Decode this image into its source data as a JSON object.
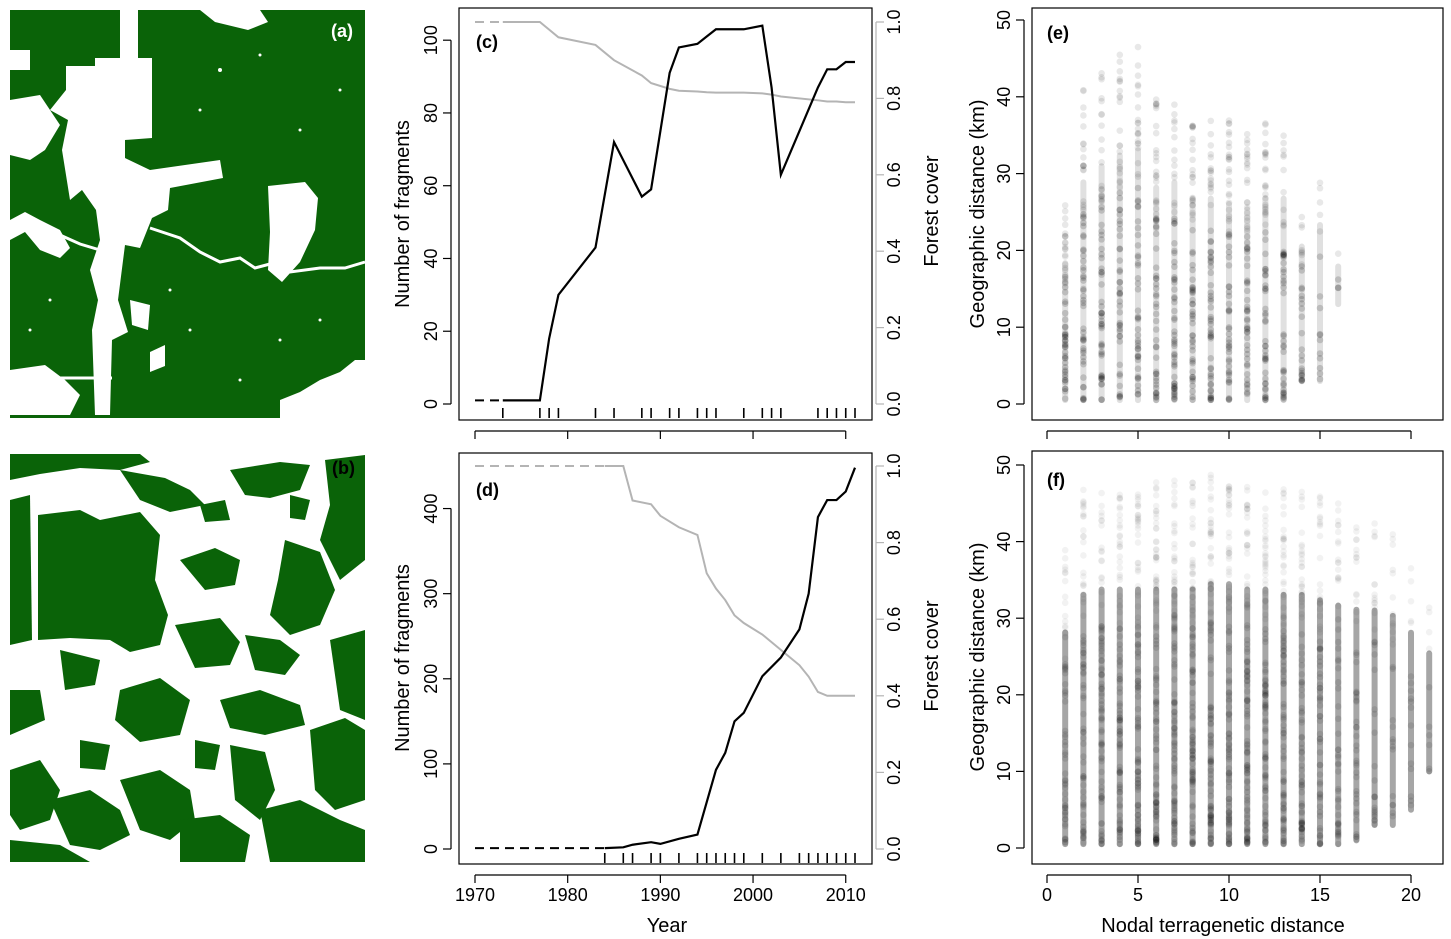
{
  "colors": {
    "forest": "#0a6308",
    "cleared": "#ffffff",
    "fragments_line": "#000000",
    "cover_line": "#b4b4b4",
    "points": "#000000"
  },
  "x_axis_label": "Year",
  "x_tick_labels": [
    "1970",
    "1980",
    "1990",
    "2000",
    "2010"
  ],
  "scatter_x_axis_label": "Nodal terragenetic distance",
  "panels": {
    "a": {
      "label": "(a)",
      "type": "map"
    },
    "b": {
      "label": "(b)",
      "type": "map"
    }
  },
  "chart_data": [
    {
      "panel_label": "(c)",
      "type": "line",
      "xlabel": "",
      "ylabel": "Number of fragments",
      "y2label": "Forest cover",
      "xlim": [
        1970,
        2011
      ],
      "ylim": [
        0,
        105
      ],
      "y2lim": [
        0,
        1
      ],
      "yticks": [
        "0",
        "20",
        "40",
        "60",
        "80",
        "100"
      ],
      "y2ticks": [
        "0.0",
        "0.2",
        "0.4",
        "0.6",
        "0.8",
        "1.0"
      ],
      "observation_years": [
        1973,
        1977,
        1978,
        1979,
        1983,
        1985,
        1988,
        1989,
        1991,
        1992,
        1994,
        1995,
        1996,
        1999,
        2001,
        2002,
        2003,
        2007,
        2008,
        2009,
        2010,
        2011
      ],
      "series": [
        {
          "axis": "left",
          "x": [
            1973,
            1977,
            1978,
            1979,
            1983,
            1985,
            1988,
            1989,
            1991,
            1992,
            1994,
            1995,
            1996,
            1999,
            2001,
            2002,
            2003,
            2007,
            2008,
            2009,
            2010,
            2011
          ],
          "values": [
            1,
            1,
            18,
            30,
            43,
            72,
            57,
            59,
            91,
            98,
            99,
            101,
            103,
            103,
            104,
            87,
            63,
            87,
            92,
            92,
            94,
            94
          ]
        },
        {
          "axis": "right",
          "x": [
            1973,
            1977,
            1978,
            1979,
            1983,
            1985,
            1988,
            1989,
            1991,
            1992,
            1994,
            1995,
            1996,
            1999,
            2001,
            2002,
            2003,
            2007,
            2008,
            2009,
            2010,
            2011
          ],
          "values": [
            1.0,
            1.0,
            0.98,
            0.96,
            0.94,
            0.9,
            0.86,
            0.84,
            0.825,
            0.82,
            0.818,
            0.816,
            0.815,
            0.815,
            0.813,
            0.81,
            0.805,
            0.795,
            0.792,
            0.792,
            0.79,
            0.79
          ]
        }
      ]
    },
    {
      "panel_label": "(d)",
      "type": "line",
      "xlabel": "Year",
      "ylabel": "Number of fragments",
      "y2label": "Forest cover",
      "xlim": [
        1970,
        2011
      ],
      "ylim": [
        0,
        450
      ],
      "y2lim": [
        0,
        1
      ],
      "yticks": [
        "0",
        "100",
        "200",
        "300",
        "400"
      ],
      "y2ticks": [
        "0.0",
        "0.2",
        "0.4",
        "0.6",
        "0.8",
        "1.0"
      ],
      "observation_years": [
        1984,
        1986,
        1987,
        1989,
        1990,
        1992,
        1994,
        1995,
        1996,
        1997,
        1998,
        1999,
        2001,
        2003,
        2005,
        2006,
        2007,
        2008,
        2009,
        2010,
        2011
      ],
      "series": [
        {
          "axis": "left",
          "x": [
            1984,
            1986,
            1987,
            1989,
            1990,
            1992,
            1994,
            1995,
            1996,
            1997,
            1998,
            1999,
            2001,
            2003,
            2005,
            2006,
            2007,
            2008,
            2009,
            2010,
            2011
          ],
          "values": [
            1,
            2,
            5,
            8,
            6,
            12,
            17,
            55,
            93,
            113,
            150,
            160,
            203,
            225,
            258,
            300,
            390,
            410,
            410,
            420,
            448
          ]
        },
        {
          "axis": "right",
          "x": [
            1984,
            1986,
            1987,
            1989,
            1990,
            1992,
            1994,
            1995,
            1996,
            1997,
            1998,
            1999,
            2001,
            2003,
            2005,
            2006,
            2007,
            2008,
            2009,
            2010,
            2011
          ],
          "values": [
            1.0,
            1.0,
            0.91,
            0.9,
            0.87,
            0.84,
            0.82,
            0.72,
            0.68,
            0.65,
            0.61,
            0.59,
            0.56,
            0.52,
            0.48,
            0.45,
            0.41,
            0.4,
            0.4,
            0.4,
            0.4
          ]
        }
      ]
    },
    {
      "panel_label": "(e)",
      "type": "scatter",
      "xlabel": "",
      "ylabel": "Geographic distance (km)",
      "xlim": [
        0,
        22
      ],
      "ylim": [
        0,
        50
      ],
      "xticks": [
        0,
        5,
        10,
        15,
        20
      ],
      "yticks": [
        "0",
        "10",
        "20",
        "30",
        "40",
        "50"
      ],
      "columns": [
        {
          "x": 1,
          "ymin": 0.5,
          "ymax": 26,
          "n": 60
        },
        {
          "x": 2,
          "ymin": 0.5,
          "ymax": 41,
          "n": 60
        },
        {
          "x": 3,
          "ymin": 0.5,
          "ymax": 44,
          "n": 60
        },
        {
          "x": 4,
          "ymin": 0.5,
          "ymax": 46,
          "n": 60
        },
        {
          "x": 5,
          "ymin": 0.5,
          "ymax": 47,
          "n": 60
        },
        {
          "x": 6,
          "ymin": 0.5,
          "ymax": 40,
          "n": 60
        },
        {
          "x": 7,
          "ymin": 0.5,
          "ymax": 41,
          "n": 60
        },
        {
          "x": 8,
          "ymin": 0.5,
          "ymax": 38,
          "n": 60
        },
        {
          "x": 9,
          "ymin": 0.5,
          "ymax": 38,
          "n": 60
        },
        {
          "x": 10,
          "ymin": 0.5,
          "ymax": 37,
          "n": 60
        },
        {
          "x": 11,
          "ymin": 0.5,
          "ymax": 36,
          "n": 60
        },
        {
          "x": 12,
          "ymin": 0.5,
          "ymax": 38,
          "n": 60
        },
        {
          "x": 13,
          "ymin": 0.5,
          "ymax": 38,
          "n": 45
        },
        {
          "x": 14,
          "ymin": 3,
          "ymax": 28,
          "n": 30
        },
        {
          "x": 15,
          "ymin": 3,
          "ymax": 32,
          "n": 16
        },
        {
          "x": 16,
          "ymin": 13,
          "ymax": 20,
          "n": 4
        }
      ]
    },
    {
      "panel_label": "(f)",
      "type": "scatter",
      "xlabel": "Nodal terragenetic distance",
      "ylabel": "Geographic distance (km)",
      "xlim": [
        0,
        22
      ],
      "ylim": [
        0,
        50
      ],
      "xticks": [
        0,
        5,
        10,
        15,
        20
      ],
      "yticks": [
        "0",
        "10",
        "20",
        "30",
        "40",
        "50"
      ],
      "columns": [
        {
          "x": 1,
          "ymin": 0.5,
          "ymax": 40,
          "n": 60
        },
        {
          "x": 2,
          "ymin": 0.5,
          "ymax": 47,
          "n": 70
        },
        {
          "x": 3,
          "ymin": 0.5,
          "ymax": 48,
          "n": 80
        },
        {
          "x": 4,
          "ymin": 0.5,
          "ymax": 48,
          "n": 90
        },
        {
          "x": 5,
          "ymin": 0.5,
          "ymax": 48,
          "n": 95
        },
        {
          "x": 6,
          "ymin": 0.5,
          "ymax": 48,
          "n": 100
        },
        {
          "x": 7,
          "ymin": 0.5,
          "ymax": 48,
          "n": 100
        },
        {
          "x": 8,
          "ymin": 0.5,
          "ymax": 48,
          "n": 100
        },
        {
          "x": 9,
          "ymin": 0.5,
          "ymax": 49,
          "n": 100
        },
        {
          "x": 10,
          "ymin": 0.5,
          "ymax": 49,
          "n": 100
        },
        {
          "x": 11,
          "ymin": 0.5,
          "ymax": 48,
          "n": 100
        },
        {
          "x": 12,
          "ymin": 0.5,
          "ymax": 48,
          "n": 95
        },
        {
          "x": 13,
          "ymin": 0.5,
          "ymax": 47,
          "n": 90
        },
        {
          "x": 14,
          "ymin": 0.5,
          "ymax": 47,
          "n": 80
        },
        {
          "x": 15,
          "ymin": 0.5,
          "ymax": 46,
          "n": 70
        },
        {
          "x": 16,
          "ymin": 0.5,
          "ymax": 45,
          "n": 55
        },
        {
          "x": 17,
          "ymin": 1,
          "ymax": 44,
          "n": 45
        },
        {
          "x": 18,
          "ymin": 3,
          "ymax": 43,
          "n": 35
        },
        {
          "x": 19,
          "ymin": 3,
          "ymax": 42,
          "n": 25
        },
        {
          "x": 20,
          "ymin": 5,
          "ymax": 38,
          "n": 18
        },
        {
          "x": 21,
          "ymin": 10,
          "ymax": 32,
          "n": 10
        }
      ]
    }
  ]
}
